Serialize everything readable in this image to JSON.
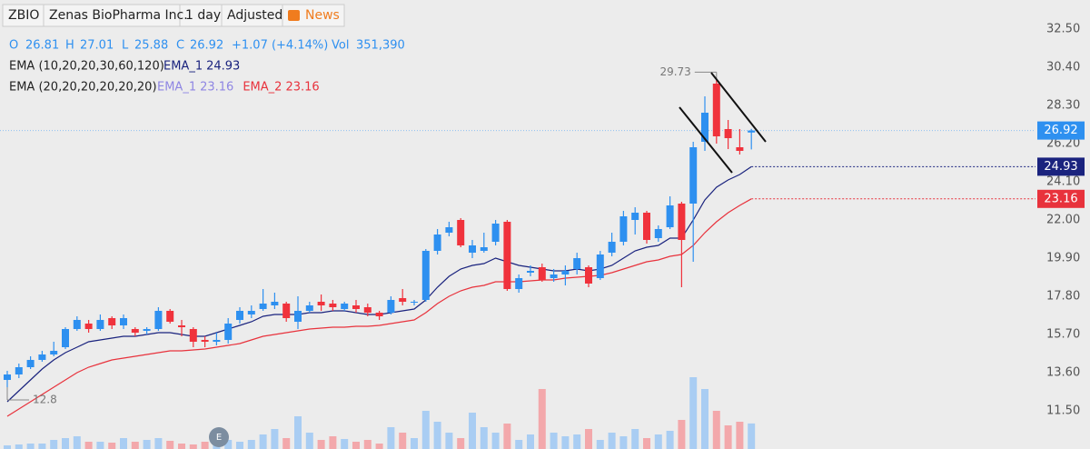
{
  "header": {
    "symbol": "ZBIO",
    "company": "Zenas BioPharma Inc.",
    "interval": "1 day",
    "adjustment": "Adjusted",
    "news": "News"
  },
  "ohlc_legend": {
    "o": "O",
    "h": "H",
    "l": "L",
    "c": "C",
    "change": "+1.07 (+4.14%)",
    "vol": "Vol",
    "volume": "351,390"
  },
  "chart_data": {
    "type": "candlestick",
    "up_color": "#2e90f0",
    "down_color": "#f0323c",
    "volume_up_color": "#a9cdf3",
    "volume_down_color": "#f3a8ab",
    "open": [
      13.2,
      13.5,
      13.9,
      14.3,
      14.6,
      15.0,
      16.0,
      16.3,
      16.0,
      16.6,
      16.2,
      16.0,
      15.9,
      16.0,
      17.0,
      16.2,
      16.0,
      15.4,
      15.3,
      15.4,
      16.5,
      16.8,
      17.1,
      17.3,
      17.4,
      16.4,
      17.0,
      17.5,
      17.4,
      17.1,
      17.3,
      17.2,
      16.9,
      16.9,
      17.7,
      17.5,
      17.6,
      20.3,
      21.3,
      22.0,
      20.2,
      20.3,
      20.8,
      21.9,
      18.2,
      19.1,
      19.4,
      18.8,
      19.0,
      19.3,
      19.4,
      18.8,
      20.2,
      20.8,
      22.0,
      22.4,
      21.0,
      21.6,
      22.9,
      22.9,
      26.3,
      29.5,
      27.0,
      26.0,
      26.81
    ],
    "high": [
      13.7,
      14.1,
      14.5,
      14.8,
      15.3,
      16.1,
      16.7,
      16.5,
      16.8,
      16.7,
      16.8,
      16.1,
      16.1,
      17.2,
      17.1,
      16.5,
      16.1,
      15.6,
      15.8,
      16.6,
      17.2,
      17.3,
      18.2,
      18.0,
      17.5,
      17.8,
      17.5,
      17.9,
      17.6,
      17.5,
      17.6,
      17.4,
      17.0,
      17.8,
      18.2,
      17.6,
      20.4,
      21.5,
      21.9,
      22.1,
      20.9,
      21.3,
      22.0,
      22.0,
      19.0,
      19.5,
      19.6,
      19.3,
      19.5,
      20.2,
      19.5,
      20.3,
      21.3,
      22.5,
      22.7,
      22.5,
      21.7,
      23.3,
      23.0,
      26.3,
      28.8,
      29.73,
      27.5,
      27.0,
      27.01
    ],
    "low": [
      12.8,
      13.3,
      13.8,
      14.2,
      14.5,
      14.9,
      15.9,
      15.8,
      15.9,
      16.0,
      16.0,
      15.6,
      15.7,
      15.9,
      16.3,
      15.6,
      15.0,
      15.0,
      15.1,
      15.2,
      16.3,
      16.6,
      17.0,
      17.1,
      16.4,
      16.0,
      16.9,
      17.0,
      17.0,
      17.0,
      16.9,
      16.7,
      16.5,
      16.8,
      17.3,
      17.3,
      17.5,
      20.1,
      21.1,
      20.5,
      19.9,
      20.2,
      20.6,
      18.1,
      18.0,
      18.9,
      18.6,
      18.6,
      18.4,
      19.0,
      18.3,
      18.7,
      20.0,
      20.6,
      21.2,
      20.7,
      20.8,
      21.5,
      18.3,
      19.7,
      25.8,
      26.2,
      25.9,
      25.6,
      25.88
    ],
    "close": [
      13.5,
      13.9,
      14.3,
      14.6,
      14.8,
      16.0,
      16.5,
      16.0,
      16.5,
      16.2,
      16.6,
      15.8,
      16.0,
      17.0,
      16.4,
      16.1,
      15.3,
      15.3,
      15.4,
      16.3,
      17.0,
      17.0,
      17.4,
      17.5,
      16.6,
      17.0,
      17.3,
      17.3,
      17.2,
      17.4,
      17.1,
      16.9,
      16.7,
      17.6,
      17.5,
      17.5,
      20.3,
      21.2,
      21.6,
      20.6,
      20.6,
      20.5,
      21.8,
      18.2,
      18.8,
      19.2,
      18.7,
      19.0,
      19.2,
      19.9,
      18.5,
      20.1,
      20.8,
      22.2,
      22.4,
      20.9,
      21.5,
      22.8,
      20.9,
      26.0,
      27.9,
      26.6,
      26.5,
      25.8,
      26.92
    ],
    "volume": [
      50000,
      62500,
      75000,
      75000,
      125000,
      150000,
      175000,
      100000,
      100000,
      87500,
      150000,
      100000,
      125000,
      150000,
      112500,
      75000,
      62500,
      100000,
      275000,
      125000,
      100000,
      125000,
      200000,
      275000,
      150000,
      450000,
      225000,
      125000,
      175000,
      137500,
      100000,
      125000,
      75000,
      300000,
      225000,
      150000,
      525000,
      375000,
      225000,
      150000,
      500000,
      300000,
      225000,
      350000,
      125000,
      200000,
      825000,
      225000,
      175000,
      200000,
      275000,
      125000,
      225000,
      175000,
      275000,
      150000,
      200000,
      250000,
      400000,
      987500,
      825000,
      525000,
      325000,
      375000,
      351390
    ],
    "series": [
      {
        "color": "#1a237e",
        "values": [
          12.0,
          12.6,
          13.2,
          13.8,
          14.3,
          14.7,
          15.0,
          15.3,
          15.4,
          15.5,
          15.6,
          15.6,
          15.7,
          15.8,
          15.8,
          15.7,
          15.6,
          15.6,
          15.8,
          16.0,
          16.2,
          16.4,
          16.7,
          16.8,
          16.8,
          16.8,
          16.9,
          16.9,
          17.0,
          17.0,
          16.9,
          16.8,
          16.8,
          16.9,
          17.0,
          17.1,
          17.6,
          18.3,
          18.9,
          19.3,
          19.5,
          19.6,
          19.9,
          19.7,
          19.5,
          19.4,
          19.3,
          19.2,
          19.2,
          19.3,
          19.2,
          19.3,
          19.5,
          19.9,
          20.3,
          20.5,
          20.6,
          21.0,
          21.0,
          22.0,
          23.1,
          23.8,
          24.2,
          24.5,
          24.93
        ]
      },
      {
        "color": "#e8323c",
        "values": [
          11.2,
          11.6,
          12.0,
          12.4,
          12.8,
          13.2,
          13.6,
          13.9,
          14.1,
          14.3,
          14.4,
          14.5,
          14.6,
          14.7,
          14.8,
          14.8,
          14.85,
          14.9,
          15.0,
          15.1,
          15.2,
          15.4,
          15.6,
          15.7,
          15.8,
          15.9,
          16.0,
          16.05,
          16.1,
          16.1,
          16.15,
          16.15,
          16.2,
          16.3,
          16.4,
          16.5,
          16.9,
          17.4,
          17.8,
          18.1,
          18.3,
          18.4,
          18.6,
          18.6,
          18.6,
          18.65,
          18.7,
          18.7,
          18.8,
          18.85,
          18.9,
          18.95,
          19.1,
          19.3,
          19.5,
          19.7,
          19.8,
          20.0,
          20.1,
          20.6,
          21.3,
          21.9,
          22.4,
          22.8,
          23.16
        ]
      }
    ],
    "studies": [
      {
        "label": "EMA (10,20,20,30,60,120)",
        "entries": [
          {
            "name": "EMA_1",
            "value": 24.93,
            "color": "#1a237e"
          }
        ]
      },
      {
        "label": "EMA (20,20,20,20,20,20)",
        "entries": [
          {
            "name": "EMA_1",
            "value": 23.16,
            "color": "#8f86e3"
          },
          {
            "name": "EMA_2",
            "value": 23.16,
            "color": "#e8323c"
          }
        ]
      }
    ],
    "ylim": [
      9.4,
      34.1
    ],
    "yticks": [
      {
        "value": 32.5,
        "label": "32.50"
      },
      {
        "value": 30.4,
        "label": "30.40"
      },
      {
        "value": 28.3,
        "label": "28.30"
      },
      {
        "value": 26.2,
        "label": "26.20"
      },
      {
        "value": 24.1,
        "label": "24.10"
      },
      {
        "value": 22,
        "label": "22.00"
      },
      {
        "value": 19.9,
        "label": "19.90"
      },
      {
        "value": 17.8,
        "label": "17.80"
      },
      {
        "value": 15.7,
        "label": "15.70"
      },
      {
        "value": 13.6,
        "label": "13.60"
      },
      {
        "value": 11.5,
        "label": "11.50"
      }
    ]
  }
}
